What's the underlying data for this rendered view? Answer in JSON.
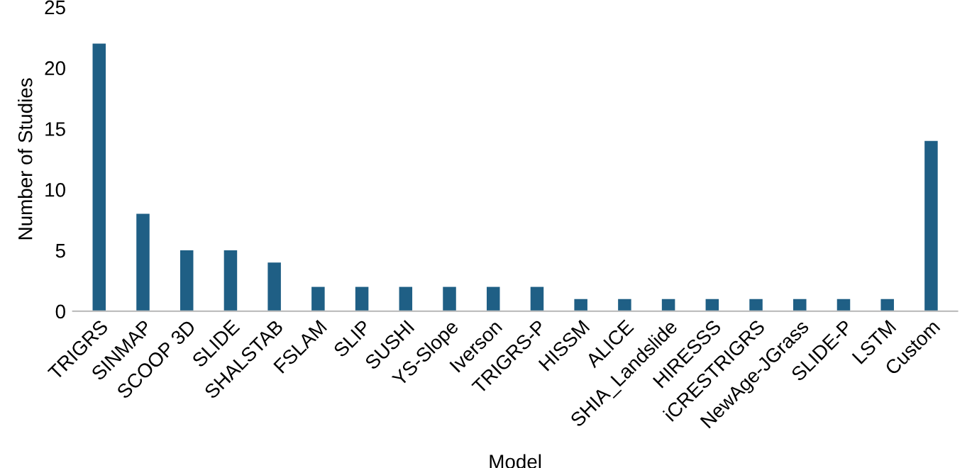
{
  "chart_data": {
    "type": "bar",
    "xlabel": "Model",
    "ylabel": "Number of Studies",
    "categories": [
      "TRIGRS",
      "SINMAP",
      "SCOOP 3D",
      "SLIDE",
      "SHALSTAB",
      "FSLAM",
      "SLIP",
      "SUSHI",
      "YS-Slope",
      "Iverson",
      "TRIGRS-P",
      "HISSM",
      "ALICE",
      "SHIA_Landslide",
      "HIRESSS",
      "iCRESTRIGRS",
      "NewAge-JGrass",
      "SLIDE-P",
      "LSTM",
      "Custom"
    ],
    "values": [
      22,
      8,
      5,
      5,
      4,
      2,
      2,
      2,
      2,
      2,
      2,
      1,
      1,
      1,
      1,
      1,
      1,
      1,
      1,
      14
    ],
    "color": "#1f5f85",
    "ylim": [
      0,
      25
    ],
    "yticks": [
      0,
      5,
      10,
      15,
      20,
      25
    ],
    "grid": false
  }
}
